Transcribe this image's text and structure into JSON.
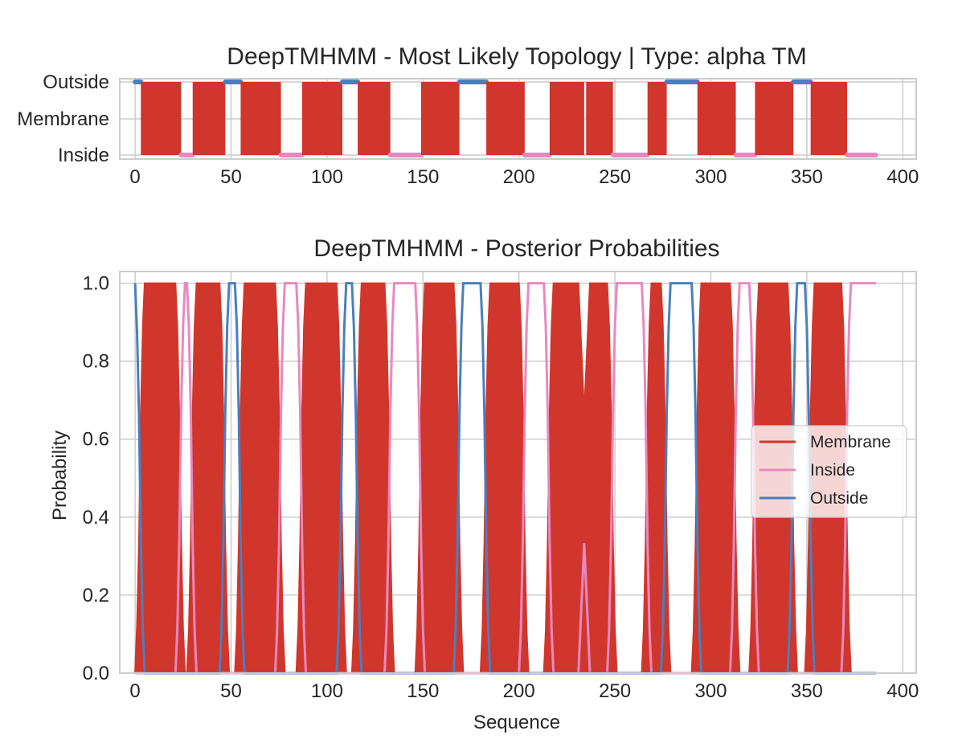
{
  "colors": {
    "membrane": "#d0362b",
    "inside": "#e988c0",
    "outside": "#4a7fbf",
    "grid": "#cccccc",
    "text": "#262626"
  },
  "chart_data": [
    {
      "type": "line",
      "title": "DeepTMHMM - Most Likely Topology | Type: alpha TM",
      "xlabel": "",
      "ylabel": "",
      "xlim": [
        -8,
        407
      ],
      "xticks": [
        0,
        50,
        100,
        150,
        200,
        250,
        300,
        350,
        400
      ],
      "ycategories": [
        "Inside",
        "Membrane",
        "Outside"
      ],
      "grid": true,
      "segments": [
        {
          "state": "Outside",
          "start": 0,
          "end": 3
        },
        {
          "state": "Membrane",
          "start": 3,
          "end": 24
        },
        {
          "state": "Inside",
          "start": 24,
          "end": 30
        },
        {
          "state": "Membrane",
          "start": 30,
          "end": 47
        },
        {
          "state": "Outside",
          "start": 47,
          "end": 55
        },
        {
          "state": "Membrane",
          "start": 55,
          "end": 76
        },
        {
          "state": "Inside",
          "start": 76,
          "end": 87
        },
        {
          "state": "Membrane",
          "start": 87,
          "end": 108
        },
        {
          "state": "Outside",
          "start": 108,
          "end": 116
        },
        {
          "state": "Membrane",
          "start": 116,
          "end": 133
        },
        {
          "state": "Inside",
          "start": 133,
          "end": 149
        },
        {
          "state": "Membrane",
          "start": 149,
          "end": 169
        },
        {
          "state": "Outside",
          "start": 169,
          "end": 183
        },
        {
          "state": "Membrane",
          "start": 183,
          "end": 203
        },
        {
          "state": "Inside",
          "start": 203,
          "end": 216
        },
        {
          "state": "Membrane",
          "start": 216,
          "end": 234
        },
        {
          "state": "Membrane",
          "start": 235,
          "end": 249
        },
        {
          "state": "Inside",
          "start": 249,
          "end": 267
        },
        {
          "state": "Membrane",
          "start": 267,
          "end": 277
        },
        {
          "state": "Outside",
          "start": 277,
          "end": 293
        },
        {
          "state": "Membrane",
          "start": 293,
          "end": 313
        },
        {
          "state": "Inside",
          "start": 313,
          "end": 323
        },
        {
          "state": "Membrane",
          "start": 323,
          "end": 343
        },
        {
          "state": "Outside",
          "start": 343,
          "end": 352
        },
        {
          "state": "Membrane",
          "start": 352,
          "end": 371
        },
        {
          "state": "Inside",
          "start": 371,
          "end": 386
        }
      ]
    },
    {
      "type": "area",
      "title": "DeepTMHMM - Posterior Probabilities",
      "xlabel": "Sequence",
      "ylabel": "Probability",
      "xlim": [
        -8,
        407
      ],
      "ylim": [
        0.0,
        1.03
      ],
      "xticks": [
        0,
        50,
        100,
        150,
        200,
        250,
        300,
        350,
        400
      ],
      "yticks": [
        "0.0",
        "0.2",
        "0.4",
        "0.6",
        "0.8",
        "1.0"
      ],
      "grid": true,
      "legend_position": "center-right",
      "series": [
        {
          "name": "Membrane"
        },
        {
          "name": "Inside"
        },
        {
          "name": "Outside"
        }
      ],
      "sequence_length": 386
    }
  ]
}
